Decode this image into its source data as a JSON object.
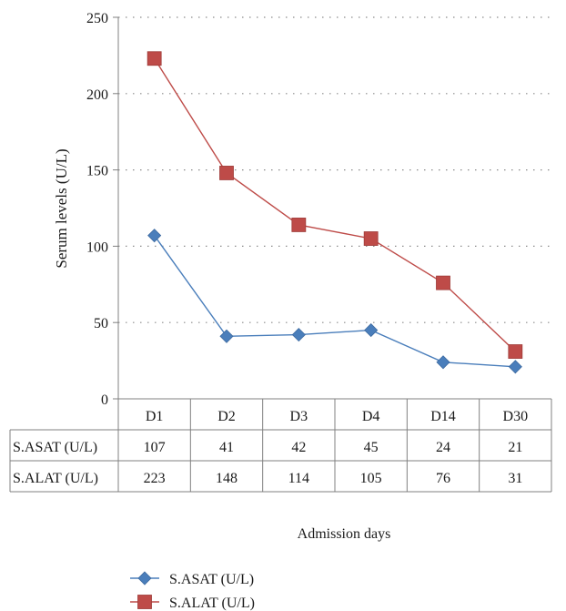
{
  "chart_data": {
    "type": "line",
    "categories": [
      "D1",
      "D2",
      "D3",
      "D4",
      "D14",
      "D30"
    ],
    "ylabel": "Serum levels (U/L)",
    "xlabel": "Admission days",
    "ylim": [
      0,
      250
    ],
    "yticks": [
      0,
      50,
      100,
      150,
      200,
      250
    ],
    "grid": true,
    "legend": "bottom",
    "series": [
      {
        "name": "S.ASAT (U/L)",
        "values": [
          107,
          41,
          42,
          45,
          24,
          21
        ],
        "color": "#4a7ebb",
        "marker": "diamond"
      },
      {
        "name": "S.ALAT (U/L)",
        "values": [
          223,
          148,
          114,
          105,
          76,
          31
        ],
        "color": "#be4b48",
        "marker": "square"
      }
    ]
  }
}
